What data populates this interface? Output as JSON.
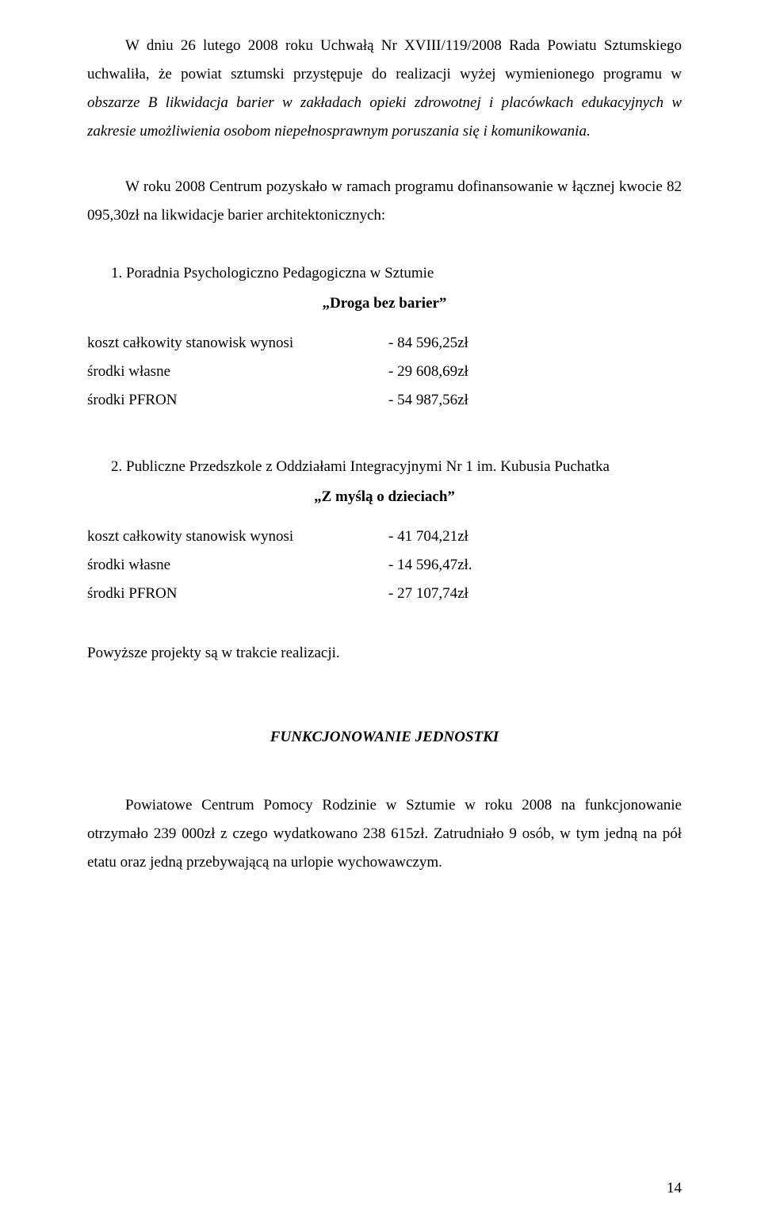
{
  "para1_a": "W dniu 26 lutego 2008 roku Uchwałą Nr XVIII/119/2008 Rada Powiatu Sztumskiego uchwaliła, że powiat sztumski przystępuje do realizacji wyżej wymienionego programu w ",
  "para1_italic": "obszarze B likwidacja barier w zakładach opieki zdrowotnej i placówkach edukacyjnych w zakresie umożliwienia osobom niepełnosprawnym poruszania się i komunikowania.",
  "para2": "W roku 2008 Centrum pozyskało w ramach programu dofinansowanie w łącznej kwocie 82 095,30zł na likwidacje barier architektonicznych:",
  "item1": {
    "line": "1.  Poradnia Psychologiczno Pedagogiczna w Sztumie",
    "title": "„Droga bez barier”",
    "rows": [
      {
        "label": "koszt całkowity stanowisk wynosi",
        "value": "- 84 596,25zł"
      },
      {
        "label": "środki własne",
        "value": "- 29 608,69zł"
      },
      {
        "label": "środki PFRON",
        "value": "- 54 987,56zł"
      }
    ]
  },
  "item2": {
    "line": "2.  Publiczne Przedszkole z Oddziałami Integracyjnymi Nr 1 im. Kubusia Puchatka",
    "title": "„Z myślą o dzieciach”",
    "rows": [
      {
        "label": "koszt całkowity stanowisk wynosi",
        "value": "- 41 704,21zł"
      },
      {
        "label": "środki własne",
        "value": "- 14 596,47zł."
      },
      {
        "label": "środki PFRON",
        "value": "- 27 107,74zł"
      }
    ]
  },
  "para3": "Powyższe projekty są w trakcie realizacji.",
  "section_heading": "FUNKCJONOWANIE JEDNOSTKI",
  "para4": "Powiatowe Centrum Pomocy Rodzinie w Sztumie w roku 2008  na funkcjonowanie otrzymało 239 000zł z czego wydatkowano 238 615zł. Zatrudniało 9 osób, w tym jedną na pół etatu oraz jedną przebywającą na urlopie wychowawczym.",
  "page_number": "14"
}
